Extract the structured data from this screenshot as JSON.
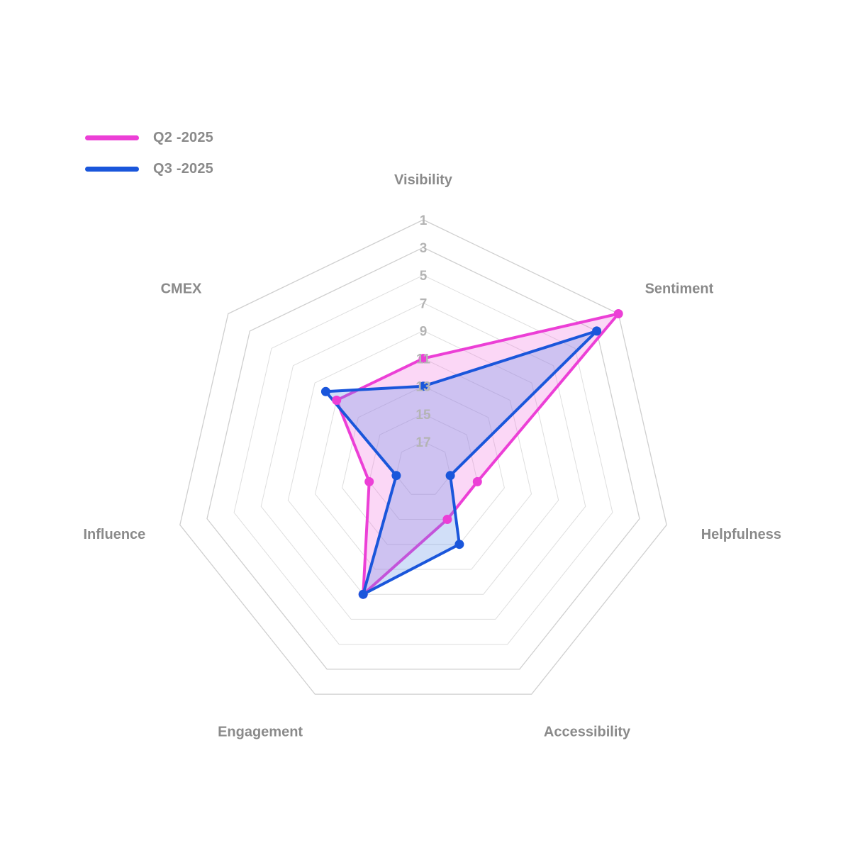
{
  "chart_data": {
    "type": "radar",
    "axes": [
      "Visibility",
      "Sentiment",
      "Helpfulness",
      "Accessibility",
      "Engagement",
      "Influence",
      "CMEX"
    ],
    "range": [
      1,
      19
    ],
    "reversed": true,
    "ticks": [
      "1",
      "3",
      "5",
      "7",
      "9",
      "11",
      "13",
      "15",
      "17"
    ],
    "legend_position": "top-left",
    "series": [
      {
        "name": "Q2 -2025",
        "color": "#ec3fd6",
        "fill": "rgba(242, 110, 222, 0.28)",
        "values": [
          11,
          1,
          15,
          15,
          9,
          15,
          11
        ]
      },
      {
        "name": "Q3 -2025",
        "color": "#1a56db",
        "fill": "rgba(90, 140, 230, 0.28)",
        "values": [
          13,
          3,
          17,
          13,
          9,
          17,
          10
        ]
      }
    ]
  }
}
